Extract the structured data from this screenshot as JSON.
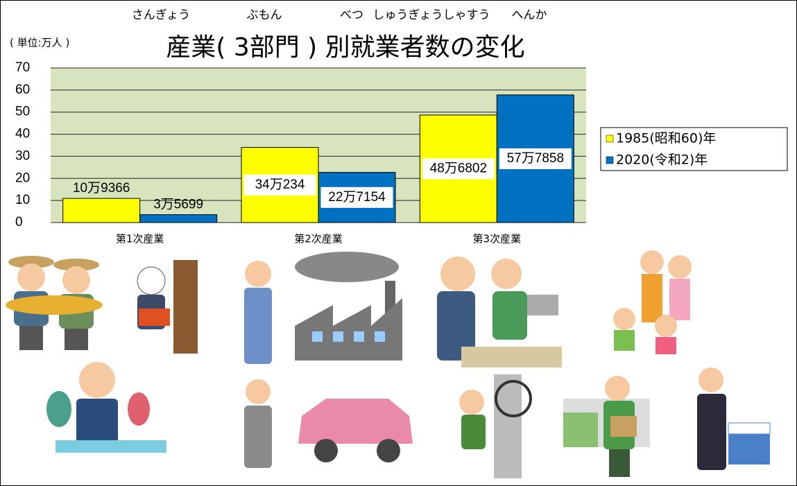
{
  "chart_data": {
    "type": "bar",
    "title": "産業( 3部門 ) 別就業者数の変化",
    "title_furigana": [
      "さんぎょう",
      "ぶもん",
      "べつ",
      "しゅうぎょうしゃすう",
      "へんか"
    ],
    "unit": "( 単位:万人 )",
    "categories": [
      "第1次産業",
      "第2次産業",
      "第3次産業"
    ],
    "series": [
      {
        "name": "1985(昭和60)年",
        "color": "#ffff00",
        "values": [
          10.9366,
          34.0234,
          48.6802
        ],
        "value_labels": [
          "10万9366",
          "34万234",
          "48万6802"
        ]
      },
      {
        "name": "2020(令和2)年",
        "color": "#0070c0",
        "values": [
          3.5699,
          22.7154,
          57.7858
        ],
        "value_labels": [
          "3万5699",
          "22万7154",
          "57万7858"
        ]
      }
    ],
    "ylim": [
      0,
      70
    ],
    "yticks": [
      0,
      10,
      20,
      30,
      40,
      50,
      60,
      70
    ],
    "grid": true,
    "legend": "right"
  }
}
